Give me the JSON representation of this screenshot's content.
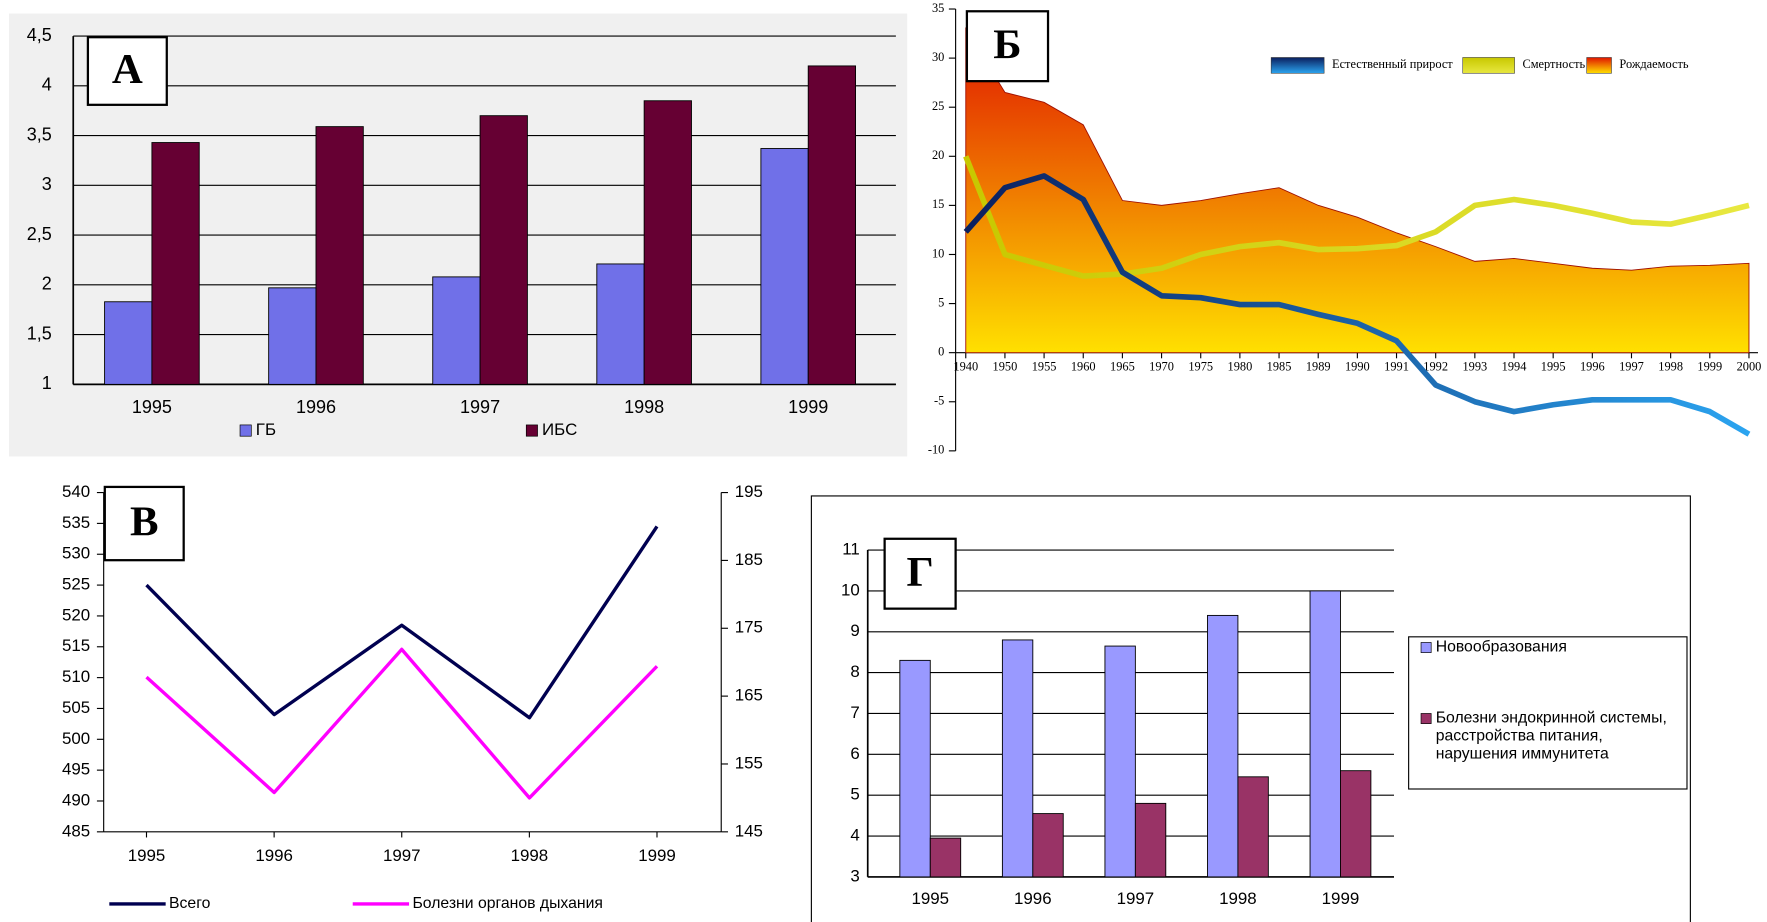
{
  "chart_data": [
    {
      "type": "bar",
      "label": "А",
      "categories": [
        "1995",
        "1996",
        "1997",
        "1998",
        "1999"
      ],
      "series": [
        {
          "name": "ГБ",
          "color": "#7070e8",
          "values": [
            1.83,
            1.97,
            2.08,
            2.21,
            3.37
          ]
        },
        {
          "name": "ИБС",
          "color": "#660033",
          "values": [
            3.43,
            3.59,
            3.7,
            3.85,
            4.2
          ]
        }
      ],
      "ylim": [
        1,
        4.5
      ],
      "yticks": [
        1,
        {
          "value": 1.5,
          "label": "1,5"
        },
        2,
        {
          "value": 2.5,
          "label": "2,5"
        },
        3,
        {
          "value": 3.5,
          "label": "3,5"
        },
        4,
        {
          "value": 4.5,
          "label": "4,5"
        }
      ],
      "grid": true,
      "legend": "bottom"
    },
    {
      "type": "line",
      "label": "Б",
      "categories": [
        "1940",
        "1950",
        "1955",
        "1960",
        "1965",
        "1970",
        "1975",
        "1980",
        "1985",
        "1989",
        "1990",
        "1991",
        "1992",
        "1993",
        "1994",
        "1995",
        "1996",
        "1997",
        "1998",
        "1999",
        "2000"
      ],
      "series": [
        {
          "name": "Рождаемость",
          "area": true,
          "colors": [
            "#e01400",
            "#ffe000"
          ],
          "values": [
            33,
            26.5,
            25.5,
            23.2,
            15.5,
            15,
            15.5,
            16.2,
            16.8,
            15,
            13.8,
            12.2,
            10.8,
            9.3,
            9.6,
            9.1,
            8.6,
            8.4,
            8.8,
            8.9,
            9.1
          ]
        },
        {
          "name": "Смертность",
          "area": false,
          "colors": [
            "#c8c800",
            "#e8e840"
          ],
          "values": [
            20,
            10,
            8.9,
            7.8,
            8.0,
            8.6,
            10,
            10.8,
            11.2,
            10.5,
            10.6,
            10.9,
            12.3,
            15.0,
            15.6,
            15.0,
            14.2,
            13.3,
            13.1,
            14.0,
            15.0
          ]
        },
        {
          "name": "Естественный прирост",
          "area": false,
          "colors": [
            "#0b1f5e",
            "#2ba4f0"
          ],
          "values": [
            12.3,
            16.8,
            18,
            15.6,
            8.2,
            5.8,
            5.6,
            4.9,
            4.9,
            3.9,
            3.0,
            1.2,
            -3.3,
            -5.0,
            -6.0,
            -5.3,
            -4.8,
            -4.8,
            -4.8,
            -6.0,
            -8.3
          ]
        }
      ],
      "legend_order": [
        2,
        1,
        0
      ],
      "ylim": [
        -10,
        35
      ],
      "yticks": [
        -10,
        -5,
        0,
        5,
        10,
        15,
        20,
        25,
        30,
        35
      ],
      "grid": false,
      "legend": "top"
    },
    {
      "type": "line",
      "label": "В",
      "categories": [
        "1995",
        "1996",
        "1997",
        "1998",
        "1999"
      ],
      "series": [
        {
          "name": "Всего",
          "color": "#000050",
          "values": [
            525,
            504,
            518.5,
            503.5,
            534.5
          ]
        },
        {
          "name": "Болезни органов дыхания",
          "color": "#ff00ff",
          "axis": "y2",
          "values": [
            167.8,
            150.8,
            171.9,
            150,
            169.4
          ]
        }
      ],
      "ylim": [
        485,
        540
      ],
      "yticks": [
        485,
        490,
        495,
        500,
        505,
        510,
        515,
        520,
        525,
        530,
        535,
        540
      ],
      "y2lim": [
        145,
        195
      ],
      "y2ticks": [
        145,
        155,
        165,
        175,
        185,
        195
      ],
      "grid": false,
      "legend": "bottom"
    },
    {
      "type": "bar",
      "label": "Г",
      "categories": [
        "1995",
        "1996",
        "1997",
        "1998",
        "1999"
      ],
      "series": [
        {
          "name": "Новообразования",
          "color": "#9999ff",
          "values": [
            8.3,
            8.8,
            8.65,
            9.4,
            10.0
          ]
        },
        {
          "name": "Болезни эндокринной системы, расстройства питания, нарушения иммунитета",
          "color": "#993366",
          "values": [
            3.95,
            4.55,
            4.8,
            5.45,
            5.6
          ]
        }
      ],
      "ylim": [
        3,
        11
      ],
      "yticks": [
        3,
        4,
        5,
        6,
        7,
        8,
        9,
        10,
        11
      ],
      "grid": true,
      "legend": "right"
    }
  ]
}
